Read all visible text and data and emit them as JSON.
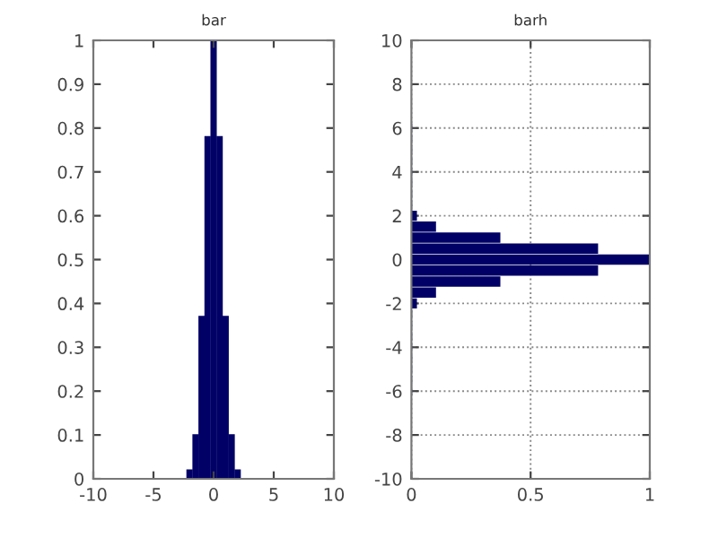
{
  "chart_data": [
    {
      "type": "bar",
      "title": "bar",
      "x": [
        -6,
        -5.5,
        -5,
        -4.5,
        -4,
        -3.5,
        -3,
        -2.5,
        -2,
        -1.5,
        -1,
        -0.5,
        0,
        0.5,
        1,
        1.5,
        2,
        2.5,
        3,
        3.5,
        4,
        4.5,
        5,
        5.5,
        6
      ],
      "values": [
        0,
        0,
        0,
        0,
        0,
        0,
        0,
        0,
        0.02,
        0.1,
        0.37,
        0.78,
        1,
        0.78,
        0.37,
        0.1,
        0.02,
        0,
        0,
        0,
        0,
        0,
        0,
        0,
        0
      ],
      "color": "#000066",
      "xlim": [
        -10,
        10
      ],
      "xticks": [
        -10,
        -5,
        0,
        5,
        10
      ],
      "ylim": [
        0,
        1
      ],
      "yticks": [
        0,
        0.1,
        0.2,
        0.3,
        0.4,
        0.5,
        0.6,
        0.7,
        0.8,
        0.9,
        1
      ],
      "grid": false
    },
    {
      "type": "bar",
      "orientation": "horizontal",
      "title": "barh",
      "x": [
        -6,
        -5.5,
        -5,
        -4.5,
        -4,
        -3.5,
        -3,
        -2.5,
        -2,
        -1.5,
        -1,
        -0.5,
        0,
        0.5,
        1,
        1.5,
        2,
        2.5,
        3,
        3.5,
        4,
        4.5,
        5,
        5.5,
        6
      ],
      "values": [
        0,
        0,
        0,
        0,
        0,
        0,
        0,
        0,
        0.02,
        0.1,
        0.37,
        0.78,
        1,
        0.78,
        0.37,
        0.1,
        0.02,
        0,
        0,
        0,
        0,
        0,
        0,
        0,
        0
      ],
      "color": "#000066",
      "xlim": [
        0,
        1
      ],
      "xticks": [
        0,
        0.5,
        1
      ],
      "ylim": [
        -10,
        10
      ],
      "yticks": [
        -10,
        -8,
        -6,
        -4,
        -2,
        0,
        2,
        4,
        6,
        8,
        10
      ],
      "grid": true,
      "line_style": "dotted"
    }
  ]
}
